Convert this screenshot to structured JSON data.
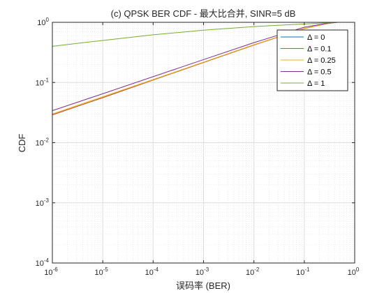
{
  "chart_data": {
    "type": "line",
    "title": "(c) QPSK BER CDF - 最大比合并, SINR=5 dB",
    "xlabel": "误码率 (BER)",
    "ylabel": "CDF",
    "xscale": "log",
    "yscale": "log",
    "xlim": [
      1e-06,
      1
    ],
    "ylim": [
      0.0001,
      1
    ],
    "x_ticks": [
      {
        "value": 1e-06,
        "base": "10",
        "exp": "-6"
      },
      {
        "value": 1e-05,
        "base": "10",
        "exp": "-5"
      },
      {
        "value": 0.0001,
        "base": "10",
        "exp": "-4"
      },
      {
        "value": 0.001,
        "base": "10",
        "exp": "-3"
      },
      {
        "value": 0.01,
        "base": "10",
        "exp": "-2"
      },
      {
        "value": 0.1,
        "base": "10",
        "exp": "-1"
      },
      {
        "value": 1,
        "base": "10",
        "exp": "0"
      }
    ],
    "y_ticks": [
      {
        "value": 0.0001,
        "base": "10",
        "exp": "-4"
      },
      {
        "value": 0.001,
        "base": "10",
        "exp": "-3"
      },
      {
        "value": 0.01,
        "base": "10",
        "exp": "-2"
      },
      {
        "value": 0.1,
        "base": "10",
        "exp": "-1"
      },
      {
        "value": 1,
        "base": "10",
        "exp": "0"
      }
    ],
    "grid": true,
    "minor_grid": true,
    "legend_position": "top-right",
    "series": [
      {
        "name": "Δ = 0",
        "color": "#0072BD",
        "x": [
          1e-06,
          1e-05,
          0.0001,
          0.001,
          0.01,
          0.1,
          0.3,
          0.45
        ],
        "y": [
          0.029,
          0.056,
          0.11,
          0.215,
          0.42,
          0.79,
          0.96,
          1.0
        ]
      },
      {
        "name": "Δ = 0.1",
        "color": "#D95319",
        "x": [
          1e-06,
          1e-05,
          0.0001,
          0.001,
          0.01,
          0.1,
          0.3,
          0.45
        ],
        "y": [
          0.029,
          0.056,
          0.11,
          0.215,
          0.42,
          0.79,
          0.96,
          1.0
        ]
      },
      {
        "name": "Δ = 0.25",
        "color": "#EDB120",
        "x": [
          1e-06,
          1e-05,
          0.0001,
          0.001,
          0.01,
          0.1,
          0.3,
          0.45
        ],
        "y": [
          0.03,
          0.058,
          0.112,
          0.218,
          0.425,
          0.795,
          0.962,
          1.0
        ]
      },
      {
        "name": "Δ = 0.5",
        "color": "#7E2F8E",
        "x": [
          1e-06,
          1e-05,
          0.0001,
          0.001,
          0.01,
          0.1,
          0.3,
          0.45
        ],
        "y": [
          0.034,
          0.065,
          0.125,
          0.24,
          0.46,
          0.83,
          0.97,
          1.0
        ]
      },
      {
        "name": "Δ = 1",
        "color": "#77AC30",
        "x": [
          1e-06,
          1e-05,
          0.0001,
          0.001,
          0.01,
          0.1,
          0.3,
          0.45
        ],
        "y": [
          0.4,
          0.5,
          0.62,
          0.74,
          0.85,
          0.94,
          0.985,
          1.0
        ]
      }
    ]
  }
}
